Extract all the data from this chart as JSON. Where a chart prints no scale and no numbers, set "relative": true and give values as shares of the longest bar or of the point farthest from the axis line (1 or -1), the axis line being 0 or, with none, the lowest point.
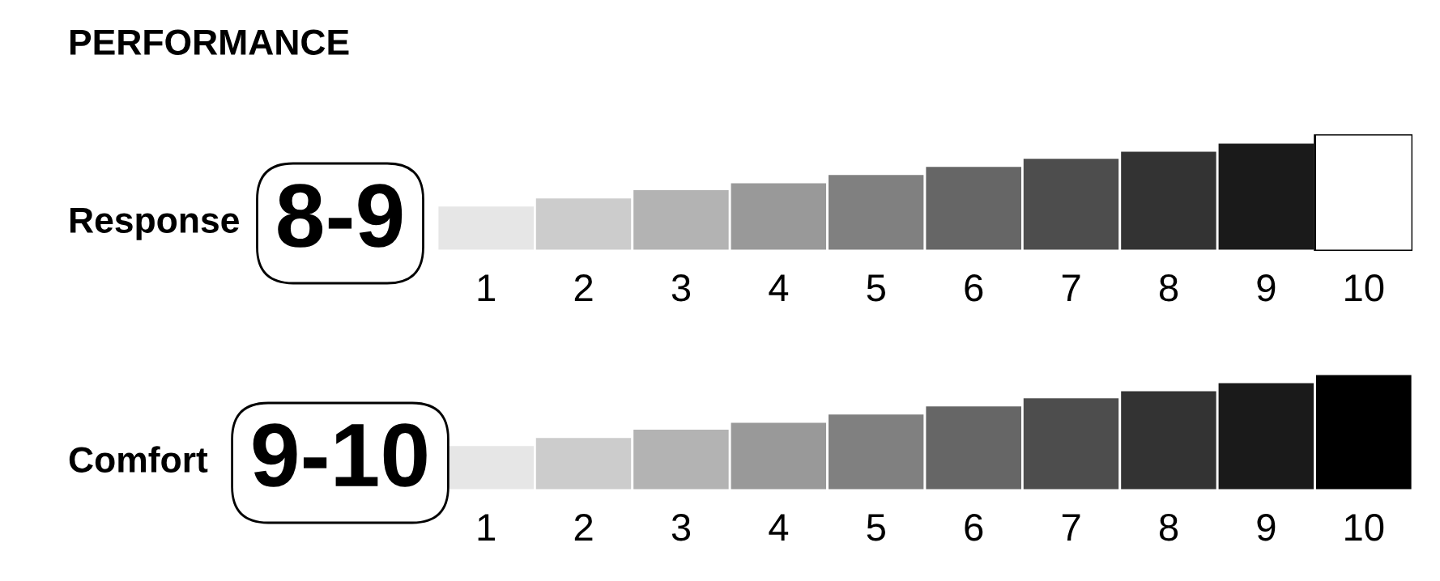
{
  "chart_data": [
    {
      "type": "bar",
      "title": "PERFORMANCE",
      "ylabel": "Response",
      "annotations": [
        "8-9"
      ],
      "relative": true,
      "categories": [
        "1",
        "2",
        "3",
        "4",
        "5",
        "6",
        "7",
        "8",
        "9",
        "10"
      ],
      "values": [
        0.39,
        0.46,
        0.53,
        0.59,
        0.66,
        0.73,
        0.8,
        0.86,
        0.93,
        1
      ],
      "colors": [
        "#e6e6e6",
        "#cccccc",
        "#b3b3b3",
        "#999999",
        "#808080",
        "#666666",
        "#4d4d4d",
        "#333333",
        "#1a1a1a",
        "#ffffff"
      ]
    },
    {
      "type": "bar",
      "ylabel": "Comfort",
      "annotations": [
        "9-10"
      ],
      "relative": true,
      "categories": [
        "1",
        "2",
        "3",
        "4",
        "5",
        "6",
        "7",
        "8",
        "9",
        "10"
      ],
      "values": [
        0.39,
        0.46,
        0.53,
        0.59,
        0.66,
        0.73,
        0.8,
        0.86,
        0.93,
        1
      ],
      "colors": [
        "#e6e6e6",
        "#cccccc",
        "#b3b3b3",
        "#999999",
        "#808080",
        "#666666",
        "#4d4d4d",
        "#333333",
        "#1a1a1a",
        "#000000"
      ]
    }
  ]
}
